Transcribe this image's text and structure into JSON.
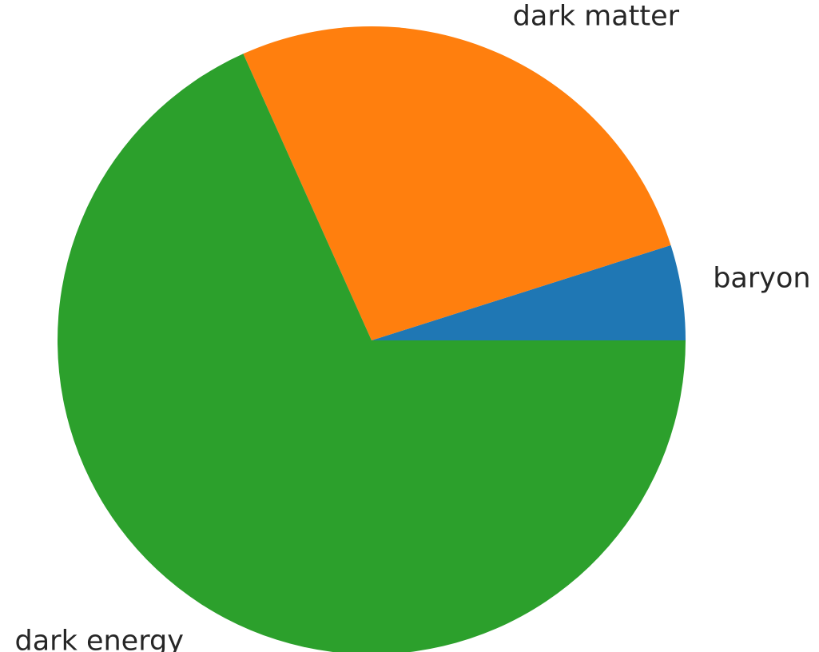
{
  "chart_data": {
    "type": "pie",
    "start_angle_deg": 0,
    "direction": "counterclockwise",
    "slices": [
      {
        "label": "baryon",
        "value": 4.9,
        "color": "#1f77b4"
      },
      {
        "label": "dark matter",
        "value": 26.8,
        "color": "#ff7f0e"
      },
      {
        "label": "dark energy",
        "value": 68.3,
        "color": "#2ca02c"
      }
    ]
  }
}
